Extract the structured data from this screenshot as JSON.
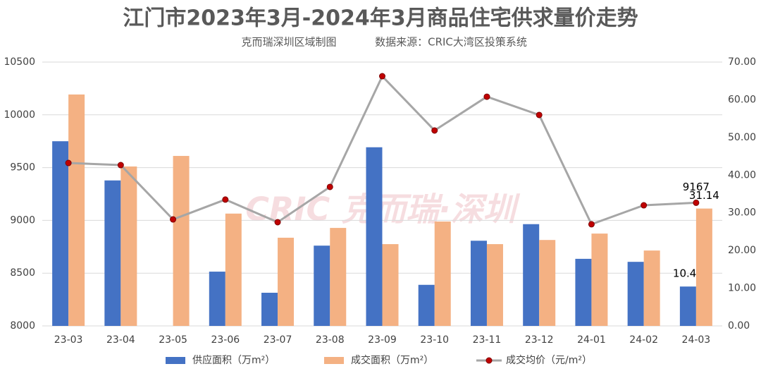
{
  "chart_data": {
    "type": "bar-line",
    "title": "江门市2023年3月-2024年3月商品住宅供求量价走势",
    "subtitle": [
      "克而瑞深圳区域制图",
      "数据来源：CRIC大湾区投策系统"
    ],
    "watermark": "CRIC 克而瑞·深圳",
    "categories": [
      "23-03",
      "23-04",
      "23-05",
      "23-06",
      "23-07",
      "23-08",
      "23-09",
      "23-10",
      "23-11",
      "23-12",
      "24-01",
      "24-02",
      "24-03"
    ],
    "series": [
      {
        "name": "供应面积（万m²）",
        "type": "bar",
        "axis": "y2",
        "color": "#4472c4",
        "values": [
          49.0,
          38.6,
          null,
          14.4,
          8.8,
          21.3,
          47.4,
          10.9,
          22.6,
          27.0,
          17.8,
          17.0,
          10.45
        ],
        "value_labels": [
          null,
          null,
          null,
          null,
          null,
          null,
          null,
          null,
          null,
          null,
          null,
          null,
          "10.45"
        ]
      },
      {
        "name": "成交面积（万m²）",
        "type": "bar",
        "axis": "y2",
        "color": "#f4b183",
        "values": [
          61.4,
          42.3,
          45.1,
          29.8,
          23.4,
          26.0,
          21.7,
          27.7,
          21.7,
          22.8,
          24.5,
          20.0,
          31.14
        ],
        "value_labels": [
          null,
          null,
          null,
          null,
          null,
          null,
          null,
          null,
          null,
          null,
          null,
          null,
          "31.14"
        ]
      },
      {
        "name": "成交均价（元/m²）",
        "type": "line",
        "axis": "y",
        "color": "#a6a6a6",
        "marker_color": "#c00000",
        "values": [
          9544,
          9524,
          9009,
          9197,
          8983,
          9317,
          10366,
          9852,
          10172,
          9999,
          8963,
          9143,
          9167
        ],
        "value_labels": [
          null,
          null,
          null,
          null,
          null,
          null,
          null,
          null,
          null,
          null,
          null,
          null,
          "9167"
        ]
      }
    ],
    "ylim": [
      8000,
      10500
    ],
    "yticks": [
      8000,
      8500,
      9000,
      9500,
      10000,
      10500
    ],
    "y2lim": [
      0,
      70
    ],
    "y2ticks": [
      {
        "value": 0,
        "label": "0.00"
      },
      {
        "value": 10,
        "label": "10.00"
      },
      {
        "value": 20,
        "label": "20.00"
      },
      {
        "value": 30,
        "label": "30.00"
      },
      {
        "value": 40,
        "label": "40.00"
      },
      {
        "value": 50,
        "label": "50.00"
      },
      {
        "value": 60,
        "label": "60.00"
      },
      {
        "value": 70,
        "label": "70.00"
      }
    ],
    "grid": true,
    "legend": "bottom"
  }
}
